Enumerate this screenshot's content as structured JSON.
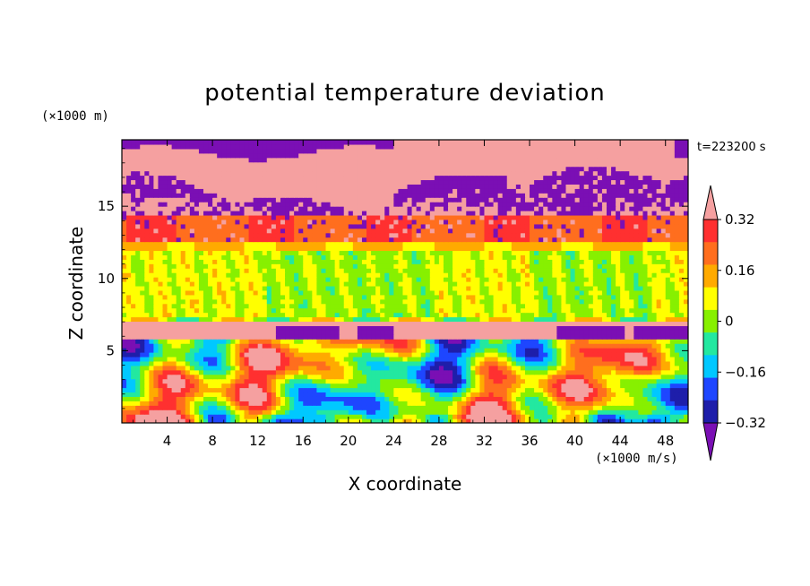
{
  "chart_data": {
    "type": "heatmap",
    "title": "potential temperature deviation",
    "xlabel": "X coordinate",
    "ylabel": "Z coordinate",
    "x_unit": "(×1000 m/s)",
    "y_unit": "(×1000 m)",
    "time_label": "t=223200 s",
    "xlim": [
      0,
      50
    ],
    "ylim": [
      0,
      19.6
    ],
    "x_ticks": [
      "4",
      "8",
      "12",
      "16",
      "20",
      "24",
      "28",
      "32",
      "36",
      "40",
      "44",
      "48"
    ],
    "y_ticks": [
      "5",
      "10",
      "15"
    ],
    "colorbar": {
      "levels": [
        -0.4,
        -0.32,
        -0.24,
        -0.16,
        -0.08,
        0,
        0.08,
        0.16,
        0.24,
        0.32,
        0.4
      ],
      "tick_labels": [
        "0.32",
        "0.16",
        "0",
        "-0.16",
        "-0.32"
      ],
      "colors": [
        "#7a0fb4",
        "#1e1eaa",
        "#1e46ff",
        "#00c8ff",
        "#23e8a0",
        "#87f000",
        "#ffff00",
        "#ffaa00",
        "#ff6e1e",
        "#ff3030",
        "#f5a0a0"
      ],
      "extend": "both"
    },
    "layers": [
      {
        "z_range": [
          0,
          5.8
        ],
        "pattern": "convective cells, mixed values -0.4 to 0.4"
      },
      {
        "z_range": [
          5.8,
          7
        ],
        "value_range": [
          0.4,
          0.45
        ],
        "note": "warm inversion layer with negative caps"
      },
      {
        "z_range": [
          7,
          12
        ],
        "value_range": [
          -0.04,
          0.04
        ]
      },
      {
        "z_range": [
          12,
          14
        ],
        "value_range": [
          0.15,
          0.35
        ]
      },
      {
        "z_range": [
          14,
          19.6
        ],
        "pattern": "alternating bands below -0.4 and above 0.4"
      }
    ]
  }
}
